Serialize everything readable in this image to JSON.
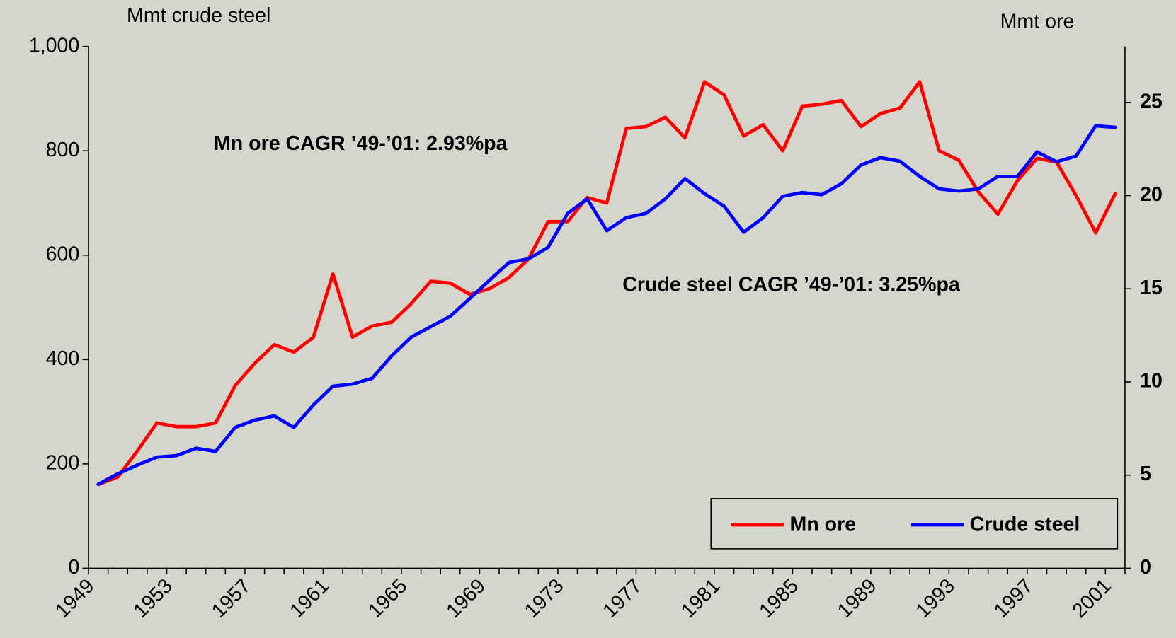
{
  "chart_data": {
    "type": "line",
    "y_label": "Mmt crude steel",
    "y2_label": "Mmt ore",
    "categories": [
      "1949",
      null,
      null,
      null,
      "1953",
      null,
      null,
      null,
      "1957",
      null,
      null,
      null,
      "1961",
      null,
      null,
      null,
      "1965",
      null,
      null,
      null,
      "1969",
      null,
      null,
      null,
      "1973",
      null,
      null,
      null,
      "1977",
      null,
      null,
      null,
      "1981",
      null,
      null,
      null,
      "1985",
      null,
      null,
      null,
      "1989",
      null,
      null,
      null,
      "1993",
      null,
      null,
      null,
      "1997",
      null,
      null,
      null,
      "2001"
    ],
    "series": [
      {
        "name": "Mn ore",
        "color": "#ff0000",
        "axis": "y2",
        "values": [
          4.5,
          4.9,
          6.3,
          7.8,
          7.6,
          7.6,
          7.8,
          9.8,
          11.0,
          12.0,
          11.6,
          12.4,
          15.8,
          12.4,
          13.0,
          13.2,
          14.2,
          15.4,
          15.3,
          14.7,
          15.0,
          15.6,
          16.6,
          18.6,
          18.6,
          19.9,
          19.6,
          23.6,
          23.7,
          24.2,
          23.1,
          26.1,
          25.4,
          23.2,
          23.8,
          22.4,
          24.8,
          24.9,
          25.1,
          23.7,
          24.4,
          24.7,
          26.1,
          22.4,
          21.9,
          20.2,
          19.0,
          20.8,
          22.0,
          21.8,
          20.0,
          18.0,
          20.1
        ]
      },
      {
        "name": "Crude steel",
        "color": "#0000ff",
        "values": [
          161,
          181,
          198,
          213,
          216,
          230,
          224,
          270,
          284,
          292,
          270,
          313,
          349,
          353,
          364,
          407,
          443,
          463,
          483,
          517,
          552,
          586,
          593,
          615,
          680,
          708,
          647,
          672,
          680,
          708,
          747,
          718,
          694,
          644,
          672,
          713,
          720,
          716,
          737,
          773,
          787,
          780,
          751,
          727,
          723,
          727,
          751,
          751,
          798,
          779,
          790,
          848,
          845
        ]
      }
    ],
    "ylim": [
      0,
      1000
    ],
    "yticks": [
      0,
      200,
      400,
      600,
      800,
      {
        "value": 1000,
        "label": "1,000"
      }
    ],
    "y2lim": [
      0,
      28
    ],
    "y2ticks": [
      0,
      5,
      10,
      15,
      20,
      25
    ],
    "legend": "lower right",
    "annotations": [
      {
        "text": "Mn ore CAGR ’49-’01:  2.93%pa",
        "color": "#e8412a"
      },
      {
        "text": "Crude steel CAGR ’49-’01: 3.25%pa",
        "color": "#3b2cf0"
      }
    ]
  }
}
